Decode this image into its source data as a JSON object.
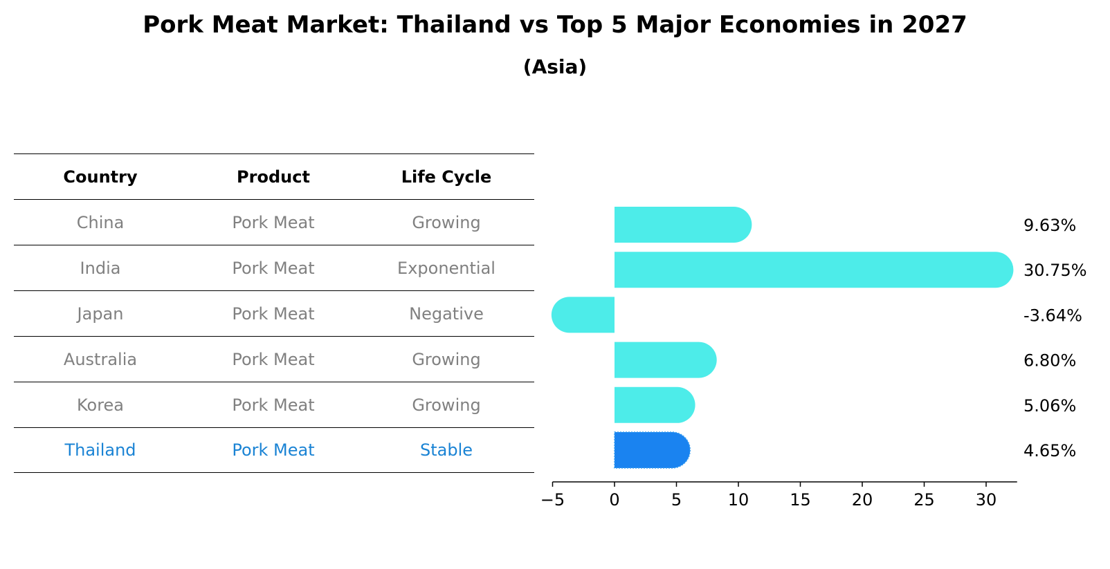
{
  "header": {
    "title": "Pork Meat Market: Thailand vs Top 5 Major Economies in 2027",
    "subtitle": "(Asia)"
  },
  "table": {
    "columns": [
      "Country",
      "Product",
      "Life Cycle"
    ],
    "rows": [
      [
        "China",
        "Pork Meat",
        "Growing"
      ],
      [
        "India",
        "Pork Meat",
        "Exponential"
      ],
      [
        "Japan",
        "Pork Meat",
        "Negative"
      ],
      [
        "Australia",
        "Pork Meat",
        "Growing"
      ],
      [
        "Korea",
        "Pork Meat",
        "Growing"
      ],
      [
        "Thailand",
        "Pork Meat",
        "Stable"
      ]
    ],
    "highlight_row": 5
  },
  "colors": {
    "bar": "#4dece9",
    "highlight_bar": "#1a83f0",
    "muted_text": "#808080",
    "highlight_text": "#1a83d4"
  },
  "chart_data": {
    "type": "bar",
    "orientation": "horizontal",
    "categories": [
      "China",
      "India",
      "Japan",
      "Australia",
      "Korea",
      "Thailand"
    ],
    "values": [
      9.63,
      30.75,
      -3.64,
      6.8,
      5.06,
      4.65
    ],
    "value_labels": [
      "9.63%",
      "30.75%",
      "-3.64%",
      "6.80%",
      "5.06%",
      "4.65%"
    ],
    "xlim": [
      -5,
      32.5
    ],
    "xticks": [
      -5,
      0,
      5,
      10,
      15,
      20,
      25,
      30
    ],
    "xtick_labels": [
      "−5",
      "0",
      "5",
      "10",
      "15",
      "20",
      "25",
      "30"
    ],
    "highlight_index": 5
  }
}
